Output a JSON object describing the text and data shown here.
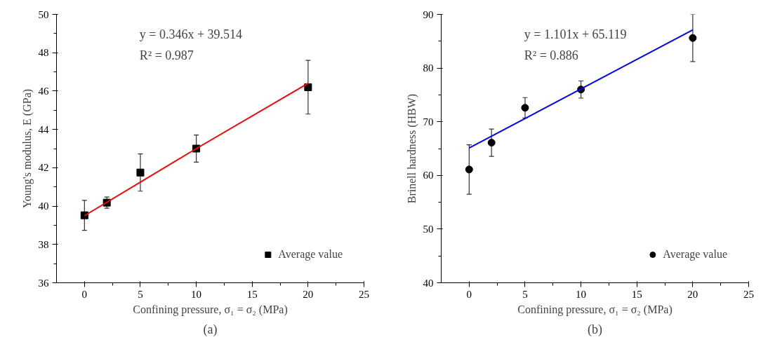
{
  "chart_data": [
    {
      "type": "scatter",
      "xlabel": "Confining pressure, σ₁ = σ₂ (MPa)",
      "ylabel": "Young's modulus, E (GPa)",
      "x": [
        0,
        2,
        5,
        10,
        20
      ],
      "xlim": [
        -2.5,
        25
      ],
      "xticks": [
        0,
        5,
        10,
        15,
        20,
        25
      ],
      "ylim": [
        36,
        50
      ],
      "yticks": [
        36,
        38,
        40,
        42,
        44,
        46,
        48,
        50
      ],
      "grid": false,
      "legend": "bottom right",
      "series": [
        {
          "name": "Average value",
          "marker": "square",
          "color": "#000000",
          "values": [
            39.52,
            40.18,
            41.75,
            43.0,
            46.2
          ],
          "errors": [
            0.78,
            0.29,
            0.97,
            0.71,
            1.4
          ]
        },
        {
          "type": "line",
          "color": "#ff0000",
          "x": [
            0,
            10,
            20
          ],
          "values": [
            39.5,
            43.0,
            46.4
          ],
          "line_style": "solid",
          "marker": "none"
        }
      ],
      "annotations": [
        {
          "text": "y = 0.346x + 39.514"
        },
        {
          "text": "R² = 0.987"
        },
        {
          "text": "(a)"
        }
      ]
    },
    {
      "type": "scatter",
      "xlabel": "Confining pressure, σ₁ = σ₂ (MPa)",
      "ylabel": "Brinell hardness (HBW)",
      "x": [
        0,
        2,
        5,
        10,
        20
      ],
      "xlim": [
        -2.5,
        25
      ],
      "xticks": [
        0,
        5,
        10,
        15,
        20,
        25
      ],
      "ylim": [
        40,
        90
      ],
      "yticks": [
        40,
        50,
        60,
        70,
        80,
        90
      ],
      "grid": false,
      "legend": "bottom right",
      "series": [
        {
          "name": "Average value",
          "marker": "circle",
          "color": "#000000",
          "values": [
            61.1,
            66.1,
            72.6,
            76.0,
            85.6
          ],
          "errors": [
            4.6,
            2.55,
            1.9,
            1.6,
            4.4
          ]
        },
        {
          "type": "line",
          "color": "#0000ff",
          "x": [
            0,
            10,
            20
          ],
          "values": [
            65.1,
            76.1,
            87.1
          ],
          "line_style": "solid",
          "marker": "none"
        }
      ],
      "annotations": [
        {
          "text": "y = 1.101x + 65.119"
        },
        {
          "text": "R² = 0.886"
        },
        {
          "text": "(b)"
        }
      ]
    }
  ]
}
